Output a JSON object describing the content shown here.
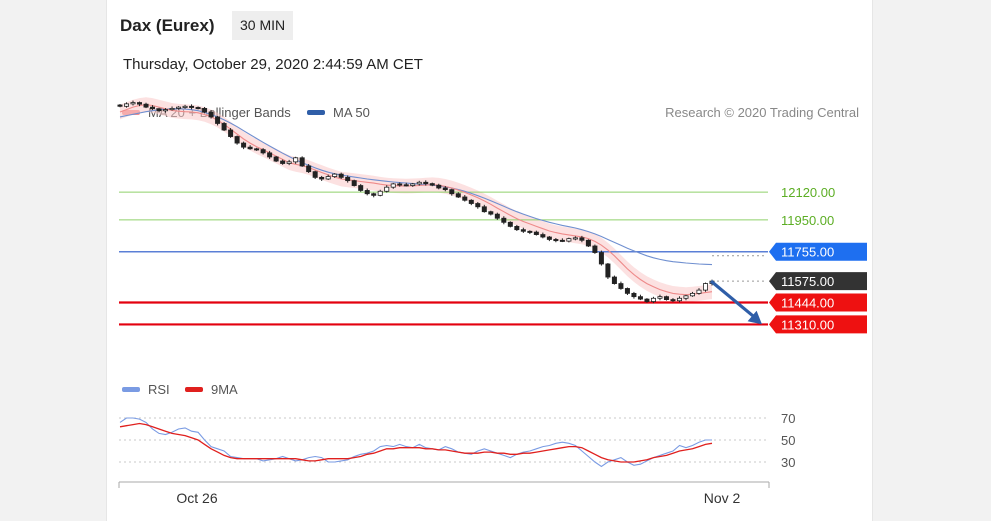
{
  "header": {
    "instrument": "Dax (Eurex)",
    "interval": "30 MIN",
    "datetime": "Thursday, October 29, 2020 2:44:59 AM CET"
  },
  "price_chart": {
    "legend": [
      {
        "label": "MA 20 + Bollinger Bands",
        "color": "#f28b8b"
      },
      {
        "label": "MA 50",
        "color": "#2f5ea8"
      }
    ],
    "credit": "Research © 2020 Trading Central"
  },
  "rsi_chart": {
    "legend": [
      {
        "label": "RSI",
        "color": "#7a9be3"
      },
      {
        "label": "9MA",
        "color": "#e0201e"
      }
    ]
  },
  "colors": {
    "green_level": "#8fd16a",
    "blue_level": "#5b7fd6",
    "red_level": "#e3000f",
    "current_price_bg": "#333333",
    "resistance_tag": "#1e6ff0",
    "support_tag": "#ee1111",
    "arrow": "#2f5ea8",
    "candle": "#222222"
  },
  "chart_data": [
    {
      "type": "line",
      "title": "",
      "price_range": [
        11080,
        12500
      ],
      "x_ticks": [
        "Oct 26",
        "Nov 2"
      ],
      "levels": [
        {
          "value": 12120.0,
          "label": "12120.00",
          "style": "green-text"
        },
        {
          "value": 11950.0,
          "label": "11950.00",
          "style": "green-text"
        },
        {
          "value": 11755.0,
          "label": "11755.00",
          "style": "blue-tag"
        },
        {
          "value": 11575.0,
          "label": "11575.00",
          "style": "current-price"
        },
        {
          "value": 11444.0,
          "label": "11444.00",
          "style": "red-tag"
        },
        {
          "value": 11310.0,
          "label": "11310.00",
          "style": "red-tag"
        }
      ],
      "series": [
        {
          "name": "Price",
          "values": [
            12645,
            12660,
            12668,
            12658,
            12640,
            12630,
            12618,
            12625,
            12632,
            12640,
            12645,
            12638,
            12632,
            12610,
            12580,
            12540,
            12500,
            12460,
            12420,
            12395,
            12385,
            12380,
            12360,
            12335,
            12310,
            12295,
            12305,
            12330,
            12280,
            12245,
            12210,
            12200,
            12215,
            12230,
            12210,
            12190,
            12160,
            12130,
            12110,
            12100,
            12125,
            12150,
            12170,
            12165,
            12160,
            12170,
            12180,
            12172,
            12162,
            12145,
            12135,
            12110,
            12090,
            12070,
            12050,
            12030,
            12000,
            11985,
            11960,
            11935,
            11910,
            11890,
            11880,
            11875,
            11860,
            11845,
            11830,
            11825,
            11820,
            11835,
            11840,
            11825,
            11790,
            11750,
            11680,
            11600,
            11560,
            11530,
            11500,
            11480,
            11465,
            11450,
            11470,
            11480,
            11462,
            11455,
            11470,
            11485,
            11500,
            11520,
            11560,
            11575
          ]
        },
        {
          "name": "MA 20",
          "values": [
            12610,
            12625,
            12640,
            12650,
            12655,
            12650,
            12640,
            12630,
            12620,
            12615,
            12612,
            12610,
            12605,
            12595,
            12580,
            12560,
            12535,
            12505,
            12475,
            12445,
            12420,
            12398,
            12380,
            12360,
            12340,
            12320,
            12300,
            12290,
            12282,
            12270,
            12255,
            12240,
            12225,
            12212,
            12200,
            12195,
            12190,
            12185,
            12180,
            12175,
            12168,
            12163,
            12160,
            12158,
            12157,
            12158,
            12160,
            12163,
            12165,
            12162,
            12155,
            12145,
            12132,
            12118,
            12102,
            12085,
            12066,
            12045,
            12022,
            12000,
            11978,
            11958,
            11940,
            11925,
            11910,
            11896,
            11882,
            11872,
            11864,
            11858,
            11852,
            11846,
            11835,
            11818,
            11795,
            11765,
            11730,
            11690,
            11650,
            11615,
            11585,
            11560,
            11540,
            11523,
            11510,
            11500,
            11495,
            11492,
            11495,
            11500,
            11505,
            11510
          ]
        },
        {
          "name": "MA 50",
          "values": [
            12580,
            12588,
            12596,
            12604,
            12612,
            12618,
            12624,
            12628,
            12630,
            12630,
            12628,
            12624,
            12618,
            12608,
            12595,
            12580,
            12562,
            12542,
            12520,
            12496,
            12472,
            12448,
            12425,
            12402,
            12380,
            12358,
            12338,
            12318,
            12300,
            12284,
            12268,
            12254,
            12242,
            12232,
            12224,
            12218,
            12212,
            12206,
            12200,
            12195,
            12190,
            12186,
            12182,
            12178,
            12175,
            12172,
            12169,
            12166,
            12163,
            12158,
            12152,
            12145,
            12136,
            12125,
            12112,
            12098,
            12083,
            12067,
            12050,
            12033,
            12016,
            12000,
            11985,
            11971,
            11958,
            11946,
            11935,
            11925,
            11916,
            11908,
            11900,
            11890,
            11878,
            11864,
            11848,
            11830,
            11812,
            11794,
            11776,
            11760,
            11745,
            11730,
            11718,
            11708,
            11700,
            11694,
            11690,
            11686,
            11683,
            11680,
            11678,
            11676
          ]
        },
        {
          "name": "Projection",
          "values": [
            11575,
            11310
          ]
        }
      ]
    },
    {
      "type": "line",
      "title": "",
      "ylim": [
        10,
        90
      ],
      "y_ticks": [
        70,
        50,
        30
      ],
      "series": [
        {
          "name": "RSI",
          "values": [
            66,
            70,
            70,
            69,
            66,
            60,
            56,
            55,
            57,
            60,
            61,
            58,
            57,
            50,
            44,
            42,
            40,
            35,
            34,
            33,
            33,
            33,
            31,
            32,
            33,
            35,
            33,
            31,
            32,
            34,
            35,
            34,
            30,
            30,
            31,
            32,
            35,
            37,
            38,
            40,
            44,
            45,
            44,
            46,
            44,
            43,
            46,
            43,
            42,
            41,
            44,
            42,
            39,
            38,
            37,
            40,
            42,
            40,
            38,
            36,
            34,
            37,
            39,
            40,
            42,
            44,
            45,
            47,
            48,
            47,
            45,
            40,
            35,
            30,
            26,
            30,
            32,
            34,
            30,
            27,
            28,
            31,
            34,
            36,
            38,
            40,
            45,
            43,
            45,
            48,
            50,
            50
          ]
        },
        {
          "name": "9MA",
          "values": [
            62,
            63,
            64,
            65,
            64,
            62,
            60,
            58,
            56,
            55,
            54,
            52,
            50,
            46,
            42,
            39,
            36,
            34,
            33,
            33,
            33,
            33,
            33,
            33,
            33,
            33,
            33,
            33,
            32,
            31,
            31,
            32,
            33,
            33,
            33,
            33,
            34,
            35,
            37,
            38,
            40,
            42,
            42,
            43,
            43,
            43,
            43,
            42,
            42,
            41,
            41,
            40,
            39,
            38,
            38,
            38,
            39,
            39,
            38,
            38,
            37,
            37,
            38,
            38,
            39,
            40,
            41,
            42,
            43,
            44,
            44,
            43,
            40,
            37,
            34,
            32,
            31,
            30,
            30,
            30,
            31,
            32,
            34,
            35,
            36,
            38,
            40,
            41,
            42,
            44,
            46,
            47
          ]
        }
      ]
    }
  ]
}
